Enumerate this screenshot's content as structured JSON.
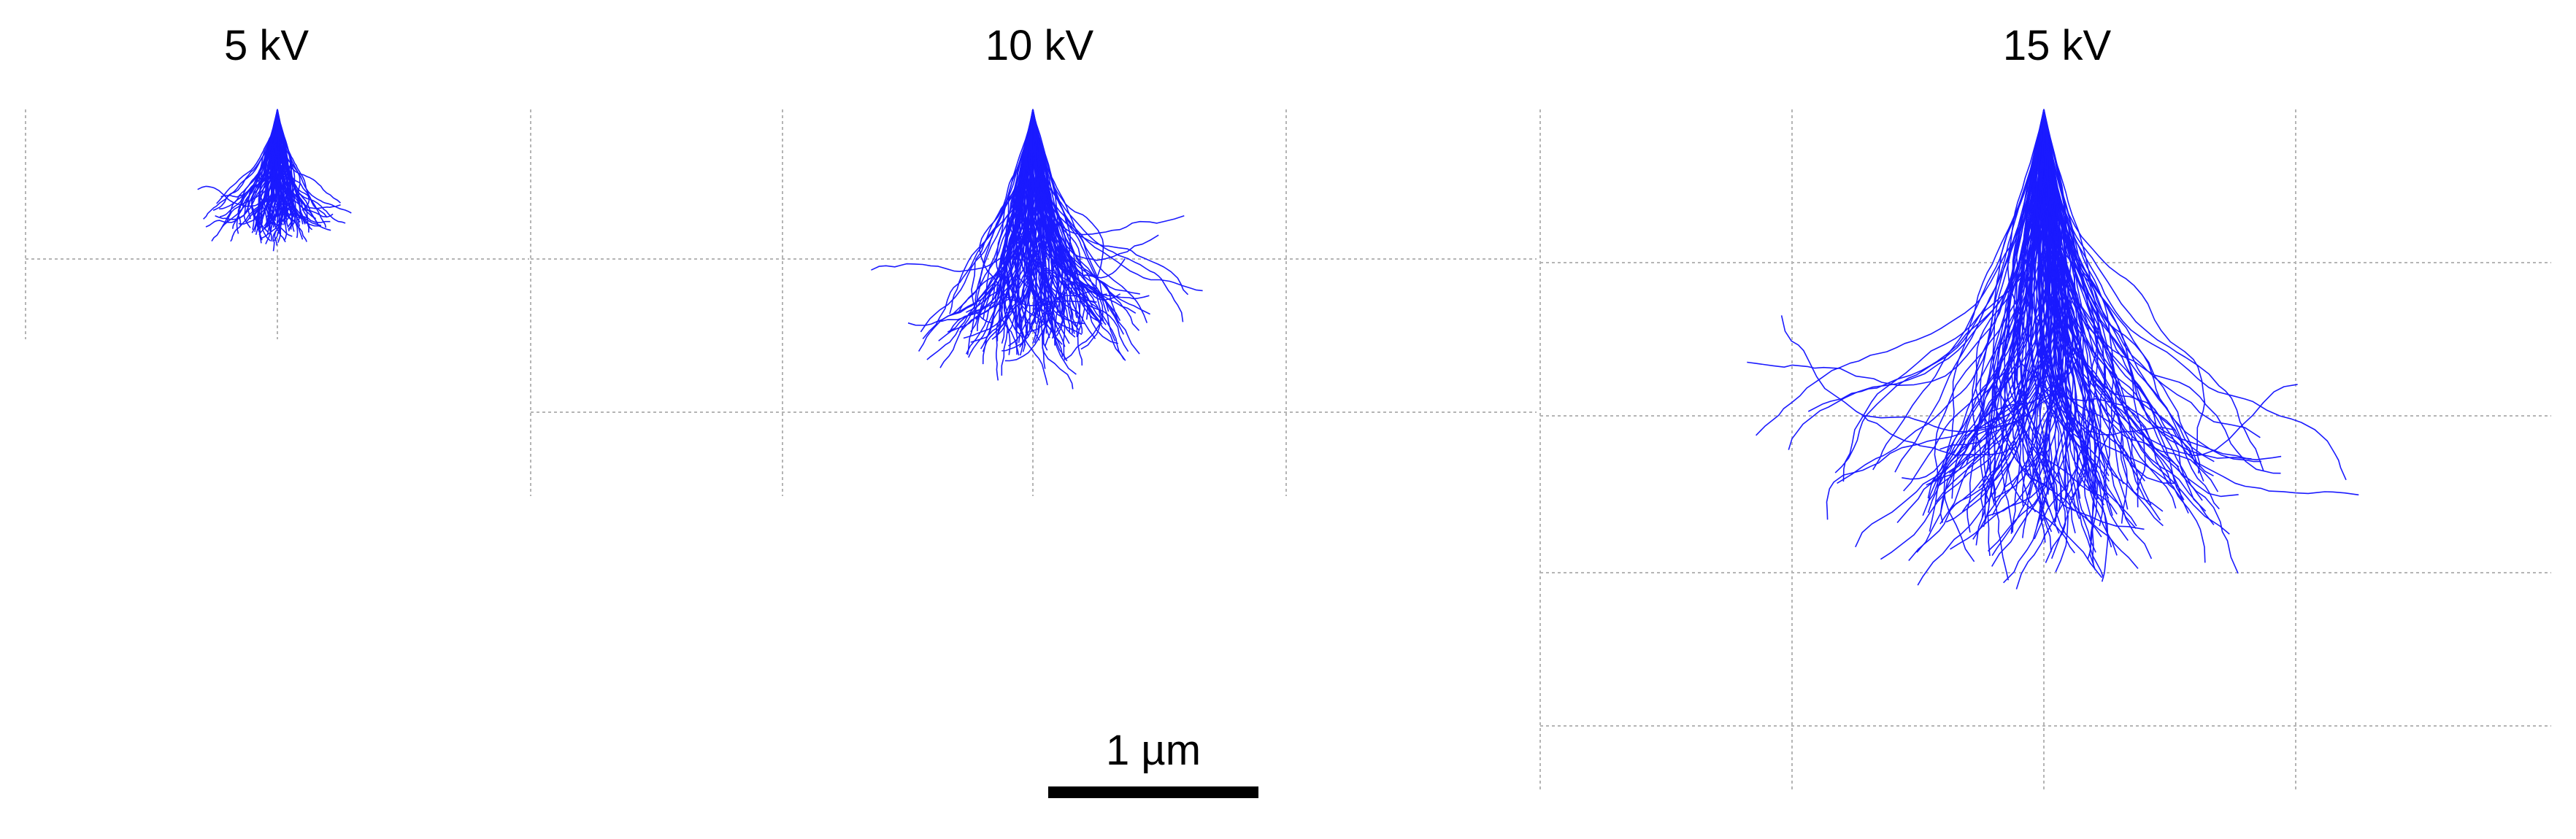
{
  "panels": [
    {
      "title": "5 kV",
      "trajectories": 110,
      "seed": 11,
      "depth_reach": 0.45
    },
    {
      "title": "10 kV",
      "trajectories": 150,
      "seed": 23,
      "depth_reach": 0.55
    },
    {
      "title": "15 kV",
      "trajectories": 170,
      "seed": 37,
      "depth_reach": 0.6
    }
  ],
  "scale_bar": {
    "label": "1 µm"
  },
  "colors": {
    "trajectory": "#1a1aff",
    "grid": "#b5b5b5",
    "scale_bar": "#000000",
    "text": "#000000"
  }
}
